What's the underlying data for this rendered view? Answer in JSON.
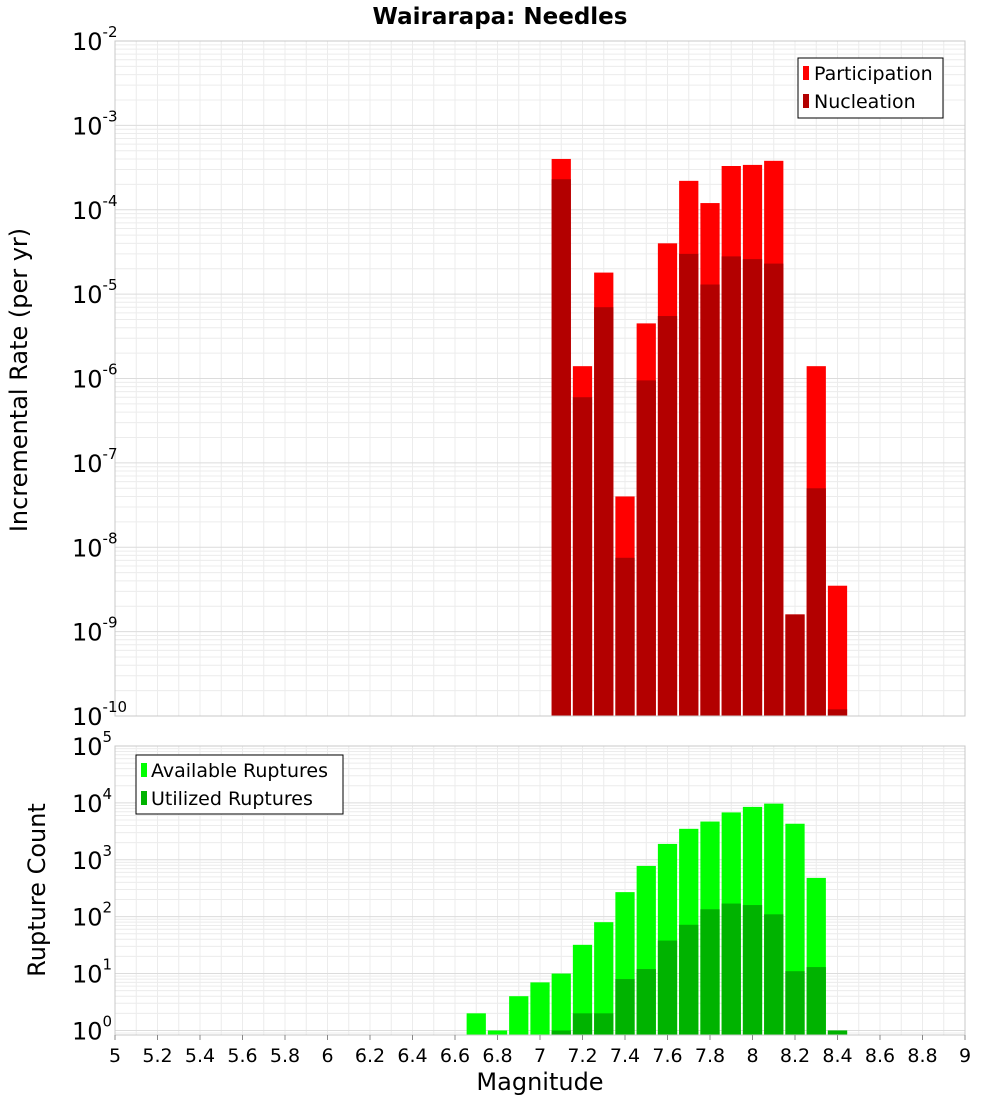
{
  "chart_data": [
    {
      "type": "bar",
      "title": "Wairarapa: Needles",
      "xlabel": "Magnitude",
      "ylabel": "Incremental Rate (per yr)",
      "yscale": "log",
      "ylim_exponents": [
        -10,
        -2
      ],
      "xlim": [
        5,
        9
      ],
      "grid": true,
      "legend_position": "top-right",
      "y_tick_labels": [
        {
          "base": "10",
          "exp": "-2"
        },
        {
          "base": "10",
          "exp": "-3"
        },
        {
          "base": "10",
          "exp": "-4"
        },
        {
          "base": "10",
          "exp": "-5"
        },
        {
          "base": "10",
          "exp": "-6"
        },
        {
          "base": "10",
          "exp": "-7"
        },
        {
          "base": "10",
          "exp": "-8"
        },
        {
          "base": "10",
          "exp": "-9"
        },
        {
          "base": "10",
          "exp": "-10"
        }
      ],
      "x": [
        7.1,
        7.2,
        7.3,
        7.4,
        7.5,
        7.6,
        7.7,
        7.8,
        7.9,
        8.0,
        8.1,
        8.2,
        8.3,
        8.4
      ],
      "series": [
        {
          "name": "Participation",
          "color": "#ff0000",
          "values": [
            0.0004,
            1.4e-06,
            1.8e-05,
            4e-08,
            4.5e-06,
            4e-05,
            0.00022,
            0.00012,
            0.00033,
            0.00034,
            0.00038,
            1.6e-09,
            1.4e-06,
            3.5e-09
          ]
        },
        {
          "name": "Nucleation",
          "color": "#b30000",
          "values": [
            0.00023,
            6e-07,
            7e-06,
            7.5e-09,
            9.5e-07,
            5.5e-06,
            3e-05,
            1.3e-05,
            2.8e-05,
            2.6e-05,
            2.3e-05,
            1.6e-09,
            5e-08,
            1.2e-10
          ]
        }
      ]
    },
    {
      "type": "bar",
      "xlabel": "Magnitude",
      "ylabel": "Rupture Count",
      "yscale": "log",
      "ylim_exponents": [
        -0.08,
        5
      ],
      "xlim": [
        5,
        9
      ],
      "grid": true,
      "legend_position": "top-left",
      "y_tick_labels": [
        {
          "base": "10",
          "exp": "5"
        },
        {
          "base": "10",
          "exp": "4"
        },
        {
          "base": "10",
          "exp": "3"
        },
        {
          "base": "10",
          "exp": "2"
        },
        {
          "base": "10",
          "exp": "1"
        },
        {
          "base": "10",
          "exp": "0"
        }
      ],
      "x_tick_labels": [
        "5",
        "5.2",
        "5.4",
        "5.6",
        "5.8",
        "6",
        "6.2",
        "6.4",
        "6.6",
        "6.8",
        "7",
        "7.2",
        "7.4",
        "7.6",
        "7.8",
        "8",
        "8.2",
        "8.4",
        "8.6",
        "8.8",
        "9"
      ],
      "x": [
        6.7,
        6.8,
        6.9,
        7.0,
        7.1,
        7.2,
        7.3,
        7.4,
        7.5,
        7.6,
        7.7,
        7.8,
        7.9,
        8.0,
        8.1,
        8.2,
        8.3,
        8.4
      ],
      "series": [
        {
          "name": "Available Ruptures",
          "color": "#00ff00",
          "values": [
            2,
            1,
            4,
            7,
            10,
            32,
            80,
            270,
            780,
            1900,
            3500,
            4700,
            6800,
            8500,
            9700,
            4300,
            480,
            1
          ]
        },
        {
          "name": "Utilized Ruptures",
          "color": "#00b300",
          "values": [
            0,
            0,
            0,
            0,
            1,
            2,
            2,
            8,
            12,
            38,
            72,
            135,
            170,
            160,
            110,
            11,
            13,
            1
          ]
        }
      ]
    }
  ]
}
